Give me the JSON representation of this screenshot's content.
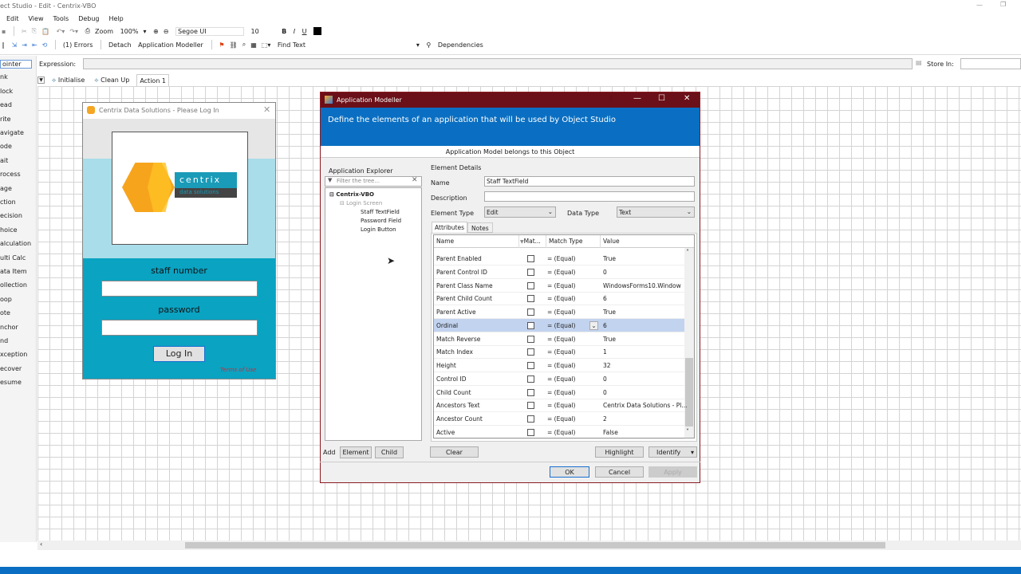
{
  "window": {
    "title": "ect Studio  - Edit - Centrix-VBO"
  },
  "menu": [
    "Edit",
    "View",
    "Tools",
    "Debug",
    "Help"
  ],
  "toolbar1": {
    "zoom_label": "Zoom",
    "zoom_value": "100%",
    "font": "Segoe UI",
    "font_size": "10",
    "bold": "B",
    "italic": "I",
    "underline": "U"
  },
  "toolbar2": {
    "errors": "(1) Errors",
    "detach": "Detach",
    "app_modeller": "Application Modeller",
    "find_text": "Find Text",
    "dependencies": "Dependencies"
  },
  "expression": {
    "label": "Expression:",
    "store_in": "Store In:"
  },
  "palette": [
    "ointer",
    "nk",
    "lock",
    "ead",
    "rite",
    "avigate",
    "ode",
    "ait",
    "rocess",
    "age",
    "ction",
    "ecision",
    "hoice",
    "alculation",
    "ulti Calc",
    "ata Item",
    "ollection",
    "oop",
    "ote",
    "nchor",
    "nd",
    "xception",
    "ecover",
    "esume"
  ],
  "tabs": [
    "Initialise",
    "Clean Up",
    "Action 1"
  ],
  "login": {
    "title": "Centrix Data Solutions - Please Log In",
    "logo_text": "centrix",
    "logo_sub": "data solutions",
    "staff_label": "staff number",
    "password_label": "password",
    "login_button": "Log In",
    "terms": "Terms of Use"
  },
  "modeller": {
    "title": "Application Modeller",
    "help": "?",
    "banner": "Define the elements of an application that will be used by Object Studio",
    "belongs": "Application Model belongs to this Object",
    "explorer": {
      "label": "Application Explorer",
      "filter_placeholder": "Filter the tree...",
      "root": "Centrix-VBO",
      "screen": "Login Screen",
      "children": [
        "Staff TextField",
        "Password Field",
        "Login Button"
      ]
    },
    "details": {
      "label": "Element Details",
      "name_label": "Name",
      "name_value": "Staff TextField",
      "description_label": "Description",
      "element_type_label": "Element Type",
      "element_type": "Edit",
      "data_type_label": "Data Type",
      "data_type": "Text"
    },
    "tabs": [
      "Attributes",
      "Notes"
    ],
    "columns": [
      "Name",
      "Mat...",
      "Match Type",
      "Value"
    ],
    "rows": [
      {
        "name": "Parent Enabled",
        "match": "=  (Equal)",
        "value": "True"
      },
      {
        "name": "Parent Control ID",
        "match": "=  (Equal)",
        "value": "0"
      },
      {
        "name": "Parent Class Name",
        "match": "=  (Equal)",
        "value": "WindowsForms10.Window"
      },
      {
        "name": "Parent Child Count",
        "match": "=  (Equal)",
        "value": "6"
      },
      {
        "name": "Parent Active",
        "match": "=  (Equal)",
        "value": "True"
      },
      {
        "name": "Ordinal",
        "match": "=  (Equal)",
        "value": "6",
        "selected": true
      },
      {
        "name": "Match Reverse",
        "match": "=  (Equal)",
        "value": "True"
      },
      {
        "name": "Match Index",
        "match": "=  (Equal)",
        "value": "1"
      },
      {
        "name": "Height",
        "match": "=  (Equal)",
        "value": "32"
      },
      {
        "name": "Control ID",
        "match": "=  (Equal)",
        "value": "0"
      },
      {
        "name": "Child Count",
        "match": "=  (Equal)",
        "value": "0"
      },
      {
        "name": "Ancestors Text",
        "match": "=  (Equal)",
        "value": "Centrix Data Solutions - Pl..."
      },
      {
        "name": "Ancestor Count",
        "match": "=  (Equal)",
        "value": "2"
      },
      {
        "name": "Active",
        "match": "=  (Equal)",
        "value": "False"
      }
    ],
    "buttons": {
      "add": "Add",
      "element": "Element",
      "child": "Child",
      "clear": "Clear",
      "highlight": "Highlight",
      "identify": "Identify",
      "ok": "OK",
      "cancel": "Cancel",
      "apply": "Apply"
    }
  },
  "colors": {
    "modeller_title": "#6b1018",
    "banner": "#0a6fc2",
    "login_teal": "#0aa3c2",
    "selected_row": "#c2d3ef",
    "statusbar": "#0a6fc2"
  }
}
